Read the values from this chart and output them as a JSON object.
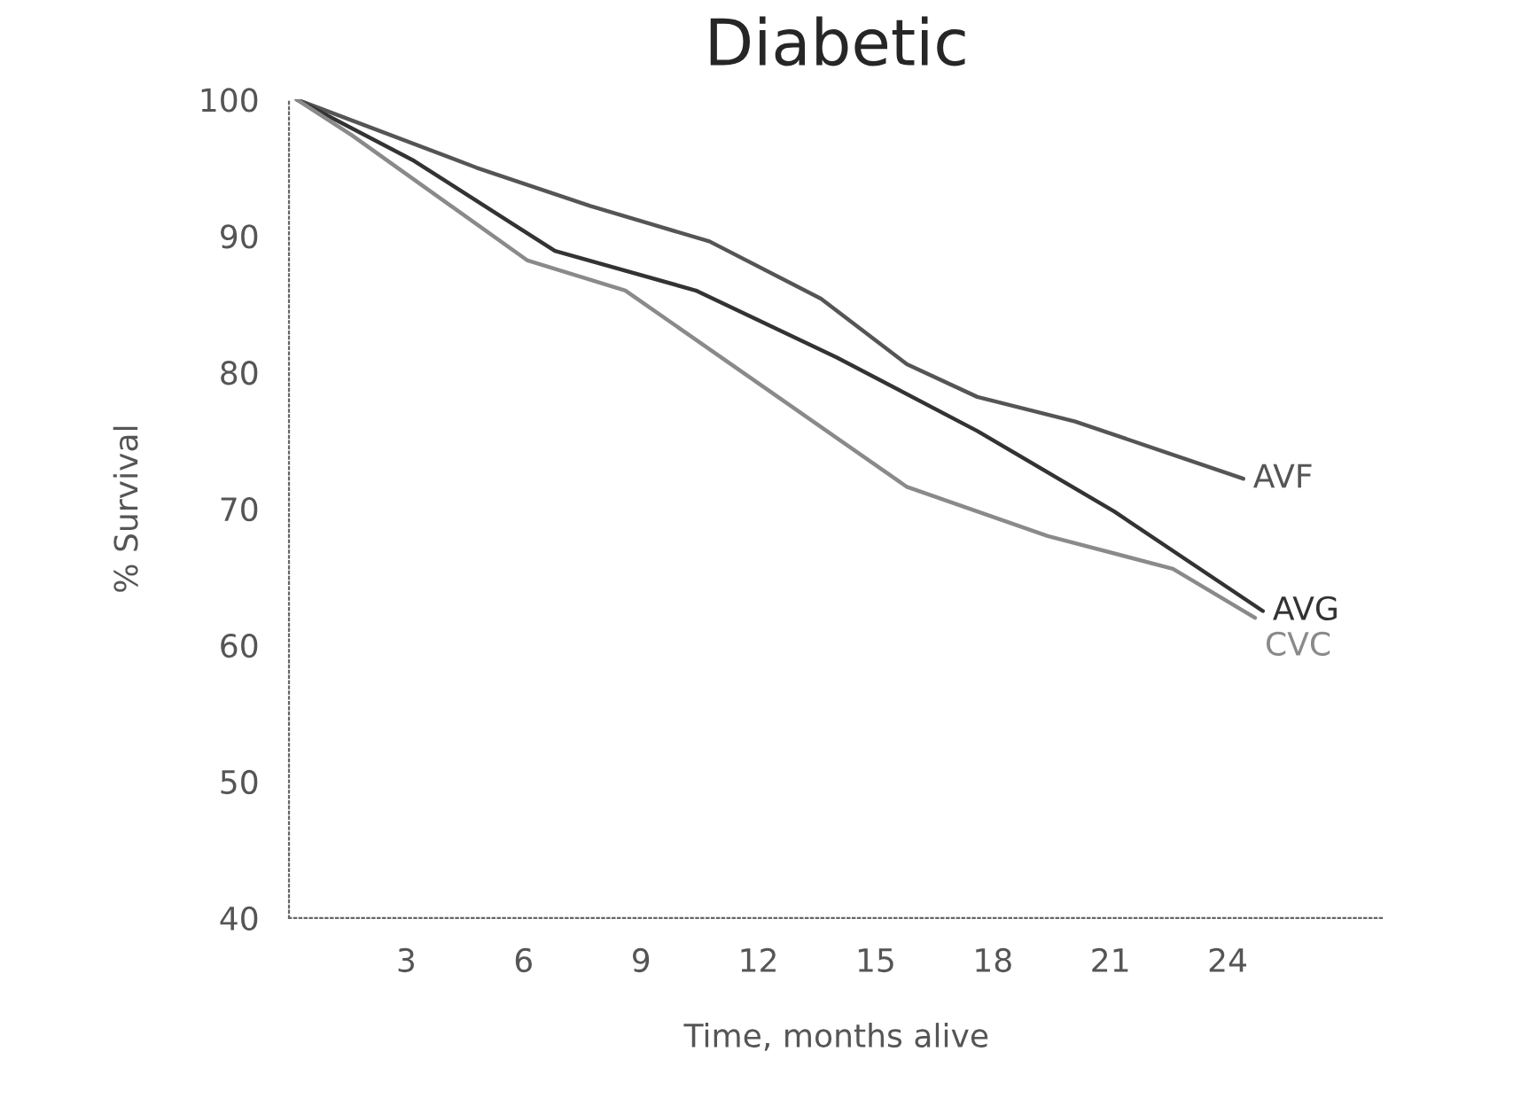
{
  "chart_data": {
    "type": "line",
    "title": "Diabetic",
    "xlabel": "Time, months alive",
    "ylabel": "% Survival",
    "xlim": [
      0,
      28
    ],
    "xticks": [
      3,
      6,
      9,
      12,
      15,
      18,
      21,
      24
    ],
    "ylim": [
      40,
      100
    ],
    "yticks": [
      40,
      50,
      60,
      70,
      80,
      90,
      100
    ],
    "grid": false,
    "legend": false,
    "marker": "none",
    "line_style": "solid",
    "series": [
      {
        "name": "AVF",
        "color": "#555555",
        "x": [
          0.2,
          4.8,
          7.7,
          10.75,
          13.6,
          15.8,
          17.6,
          20.1,
          24.4
        ],
        "values": [
          100,
          95.0,
          92.2,
          89.6,
          85.4,
          80.6,
          78.2,
          76.4,
          72.2
        ]
      },
      {
        "name": "AVG",
        "color": "#333333",
        "x": [
          0.2,
          3.2,
          6.8,
          10.4,
          14.0,
          17.6,
          21.1,
          24.9
        ],
        "values": [
          100,
          95.5,
          88.9,
          86.0,
          81.1,
          75.7,
          69.8,
          62.5
        ]
      },
      {
        "name": "CVC",
        "color": "#8a8a8a",
        "x": [
          0.2,
          1.6,
          6.1,
          8.6,
          12.2,
          15.8,
          19.4,
          22.6,
          24.7
        ],
        "values": [
          100,
          97.4,
          88.2,
          86.0,
          78.8,
          71.6,
          68.0,
          65.6,
          62.0
        ]
      }
    ]
  }
}
